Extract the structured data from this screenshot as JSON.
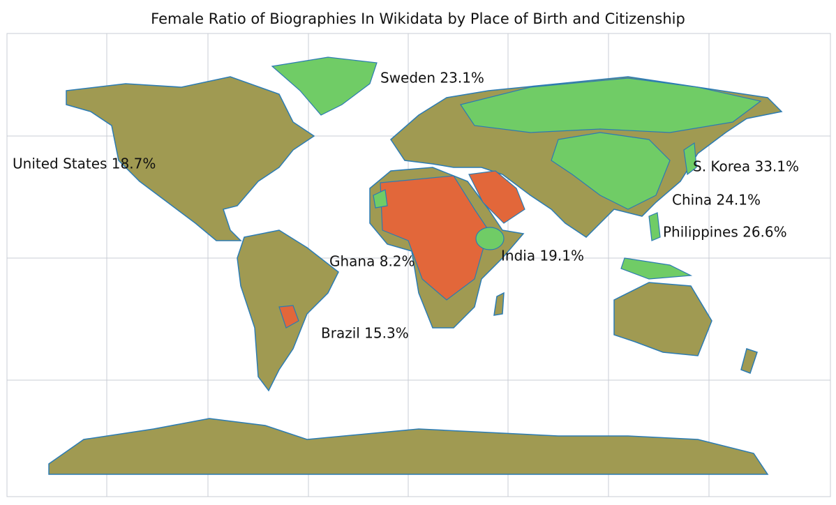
{
  "title": "Female Ratio of Biographies In Wikidata by Place of Birth and Citizenship",
  "labels": [
    "Sweden 23.1%",
    "United States 18.7%",
    "S. Korea 33.1%",
    "China 24.1%",
    "Philippines 26.6%",
    "Ghana 8.2%",
    "India 19.1%",
    "Brazil 15.3%"
  ]
}
